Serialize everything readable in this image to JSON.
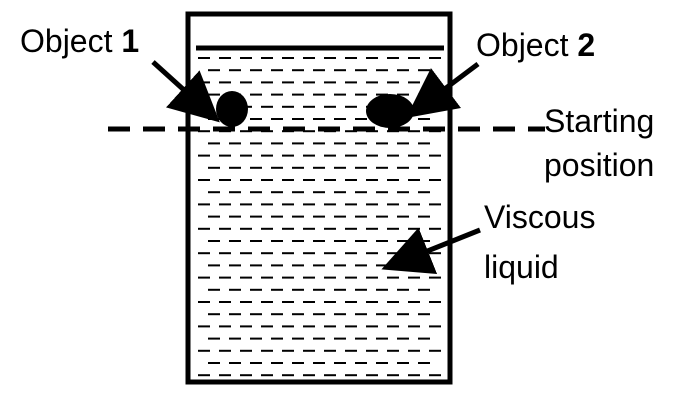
{
  "labels": {
    "object1_word": "Object",
    "object1_number": "1",
    "object2_word": "Object",
    "object2_number": "2",
    "starting_line1": "Starting",
    "starting_line2": "position",
    "liquid_line1": "Viscous",
    "liquid_line2": "liquid"
  },
  "colors": {
    "ink": "#000000",
    "background": "#ffffff"
  }
}
